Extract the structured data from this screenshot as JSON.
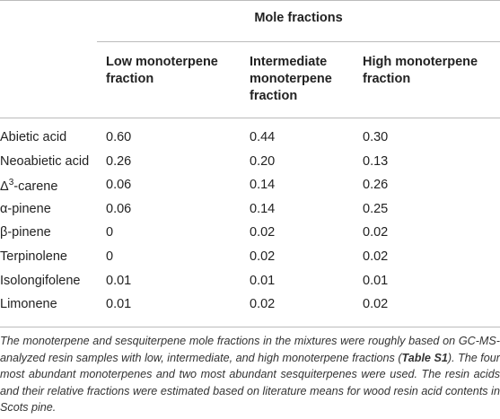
{
  "table": {
    "group_header": "Mole fractions",
    "columns": [
      "Low monoterpene fraction",
      "Intermediate monoterpene fraction",
      "High monoterpene fraction"
    ],
    "rows": [
      {
        "label": [
          "Abietic acid"
        ],
        "values": [
          "0.60",
          "0.44",
          "0.30"
        ]
      },
      {
        "label": [
          "Neoabietic acid"
        ],
        "values": [
          "0.26",
          "0.20",
          "0.13"
        ]
      },
      {
        "label": [
          "Δ",
          "3",
          "-carene"
        ],
        "values": [
          "0.06",
          "0.14",
          "0.26"
        ]
      },
      {
        "label": [
          "α-pinene"
        ],
        "values": [
          "0.06",
          "0.14",
          "0.25"
        ]
      },
      {
        "label": [
          "β-pinene"
        ],
        "values": [
          "0",
          "0.02",
          "0.02"
        ]
      },
      {
        "label": [
          "Terpinolene"
        ],
        "values": [
          "0",
          "0.02",
          "0.02"
        ]
      },
      {
        "label": [
          "Isolongifolene"
        ],
        "values": [
          "0.01",
          "0.01",
          "0.01"
        ]
      },
      {
        "label": [
          "Limonene"
        ],
        "values": [
          "0.01",
          "0.02",
          "0.02"
        ]
      }
    ]
  },
  "caption": {
    "before": "The monoterpene and sesquiterpene mole fractions in the mixtures were roughly based on GC-MS-analyzed resin samples with low, intermediate, and high monoterpene fractions (",
    "bold": "Table S1",
    "after": "). The four most abundant monoterpenes and two most abundant sesquiterpenes were used. The resin acids and their relative fractions were estimated based on literature means for wood resin acid contents in Scots pine."
  }
}
